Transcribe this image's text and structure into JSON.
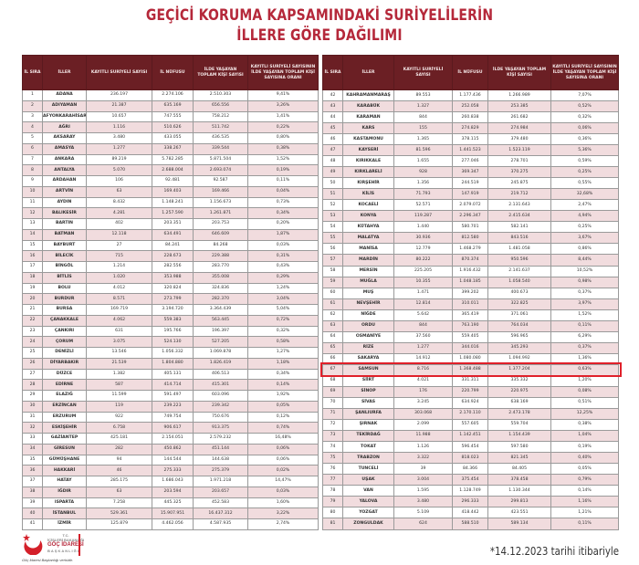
{
  "title": {
    "line1": "GEÇİCİ KORUMA KAPSAMINDAKİ SURİYELİLERİN",
    "line2": "İLLERE GÖRE DAĞILIMI"
  },
  "columns": [
    "İL SIRA",
    "İLLER",
    "KAYITLI SURİYELİ SAYISI",
    "İL NÜFUSU",
    "İLDE YAŞAYAN TOPLAM KİŞİ SAYISI",
    "KAYITLI SURİYELİ SAYISININ İLDE YAŞAYAN TOPLAM KİŞİ SAYISINA ORANI"
  ],
  "left_rows": [
    [
      "1",
      "ADANA",
      "236.197",
      "2.274.106",
      "2.510.303",
      "9,41%"
    ],
    [
      "2",
      "ADIYAMAN",
      "21.387",
      "635.169",
      "656.556",
      "3,26%"
    ],
    [
      "3",
      "AFYONKARAHİSAR",
      "10.657",
      "747.555",
      "758.212",
      "1,41%"
    ],
    [
      "4",
      "AĞRI",
      "1.116",
      "510.626",
      "511.742",
      "0,22%"
    ],
    [
      "5",
      "AKSARAY",
      "3.480",
      "433.055",
      "436.535",
      "0,80%"
    ],
    [
      "6",
      "AMASYA",
      "1.277",
      "338.267",
      "339.544",
      "0,38%"
    ],
    [
      "7",
      "ANKARA",
      "89.219",
      "5.782.285",
      "5.871.504",
      "1,52%"
    ],
    [
      "8",
      "ANTALYA",
      "5.070",
      "2.688.004",
      "2.693.074",
      "0,19%"
    ],
    [
      "9",
      "ARDAHAN",
      "106",
      "92.481",
      "92.587",
      "0,11%"
    ],
    [
      "10",
      "ARTVİN",
      "63",
      "169.403",
      "169.466",
      "0,04%"
    ],
    [
      "11",
      "AYDIN",
      "8.432",
      "1.148.241",
      "1.156.673",
      "0,73%"
    ],
    [
      "12",
      "BALIKESİR",
      "4.281",
      "1.257.590",
      "1.261.871",
      "0,34%"
    ],
    [
      "13",
      "BARTIN",
      "402",
      "203.351",
      "203.753",
      "0,20%"
    ],
    [
      "14",
      "BATMAN",
      "12.118",
      "634.491",
      "646.609",
      "1,87%"
    ],
    [
      "15",
      "BAYBURT",
      "27",
      "84.241",
      "84.268",
      "0,03%"
    ],
    [
      "16",
      "BİLECİK",
      "715",
      "228.673",
      "229.388",
      "0,31%"
    ],
    [
      "17",
      "BİNGÖL",
      "1.214",
      "282.556",
      "283.770",
      "0,43%"
    ],
    [
      "18",
      "BİTLİS",
      "1.020",
      "353.988",
      "355.008",
      "0,29%"
    ],
    [
      "19",
      "BOLU",
      "4.012",
      "320.824",
      "324.836",
      "1,24%"
    ],
    [
      "20",
      "BURDUR",
      "8.571",
      "273.799",
      "282.370",
      "3,04%"
    ],
    [
      "21",
      "BURSA",
      "169.719",
      "3.194.720",
      "3.364.439",
      "5,04%"
    ],
    [
      "22",
      "ÇANAKKALE",
      "4.062",
      "559.383",
      "563.445",
      "0,72%"
    ],
    [
      "23",
      "ÇANKIRI",
      "631",
      "195.766",
      "196.397",
      "0,32%"
    ],
    [
      "24",
      "ÇORUM",
      "3.075",
      "524.130",
      "527.205",
      "0,58%"
    ],
    [
      "25",
      "DENİZLİ",
      "13.546",
      "1.056.332",
      "1.069.878",
      "1,27%"
    ],
    [
      "26",
      "DİYARBAKIR",
      "21.539",
      "1.804.880",
      "1.826.419",
      "1,18%"
    ],
    [
      "27",
      "DÜZCE",
      "1.382",
      "405.131",
      "406.513",
      "0,34%"
    ],
    [
      "28",
      "EDİRNE",
      "587",
      "414.714",
      "415.301",
      "0,14%"
    ],
    [
      "29",
      "ELAZIĞ",
      "11.599",
      "591.497",
      "603.096",
      "1,92%"
    ],
    [
      "30",
      "ERZİNCAN",
      "119",
      "239.223",
      "239.342",
      "0,05%"
    ],
    [
      "31",
      "ERZURUM",
      "922",
      "749.754",
      "750.676",
      "0,12%"
    ],
    [
      "32",
      "ESKİŞEHİR",
      "6.758",
      "906.617",
      "913.375",
      "0,74%"
    ],
    [
      "33",
      "GAZİANTEP",
      "425.181",
      "2.154.051",
      "2.579.232",
      "16,48%"
    ],
    [
      "34",
      "GİRESUN",
      "282",
      "450.862",
      "451.144",
      "0,06%"
    ],
    [
      "35",
      "GÜMÜŞHANE",
      "94",
      "144.544",
      "144.638",
      "0,06%"
    ],
    [
      "36",
      "HAKKARİ",
      "46",
      "275.333",
      "275.379",
      "0,02%"
    ],
    [
      "37",
      "HATAY",
      "285.175",
      "1.686.043",
      "1.971.218",
      "14,47%"
    ],
    [
      "38",
      "IĞDIR",
      "63",
      "203.594",
      "203.657",
      "0,03%"
    ],
    [
      "39",
      "ISPARTA",
      "7.258",
      "445.325",
      "452.583",
      "1,60%"
    ],
    [
      "40",
      "İSTANBUL",
      "529.361",
      "15.907.951",
      "16.437.312",
      "3,22%"
    ],
    [
      "41",
      "İZMİR",
      "125.879",
      "4.462.056",
      "4.587.935",
      "2,74%"
    ]
  ],
  "right_rows": [
    [
      "42",
      "KAHRAMANMARAŞ",
      "89.553",
      "1.177.436",
      "1.266.989",
      "7,07%"
    ],
    [
      "43",
      "KARABÜK",
      "1.327",
      "252.058",
      "253.385",
      "0,52%"
    ],
    [
      "44",
      "KARAMAN",
      "844",
      "260.838",
      "261.682",
      "0,32%"
    ],
    [
      "45",
      "KARS",
      "155",
      "274.829",
      "274.984",
      "0,06%"
    ],
    [
      "46",
      "KASTAMONU",
      "1.365",
      "378.115",
      "379.480",
      "0,36%"
    ],
    [
      "47",
      "KAYSERİ",
      "81.596",
      "1.441.523",
      "1.523.119",
      "5,36%"
    ],
    [
      "48",
      "KIRIKKALE",
      "1.655",
      "277.046",
      "278.701",
      "0,59%"
    ],
    [
      "49",
      "KIRKLARELİ",
      "928",
      "369.347",
      "370.275",
      "0,25%"
    ],
    [
      "50",
      "KIRŞEHİR",
      "1.356",
      "244.519",
      "245.875",
      "0,55%"
    ],
    [
      "51",
      "KİLİS",
      "71.793",
      "147.919",
      "219.712",
      "32,68%"
    ],
    [
      "52",
      "KOCAELİ",
      "52.571",
      "2.079.072",
      "2.131.643",
      "2,47%"
    ],
    [
      "53",
      "KONYA",
      "119.287",
      "2.296.347",
      "2.415.634",
      "4,94%"
    ],
    [
      "54",
      "KÜTAHYA",
      "1.440",
      "580.701",
      "582.141",
      "0,25%"
    ],
    [
      "55",
      "MALATYA",
      "30.936",
      "812.580",
      "843.516",
      "3,67%"
    ],
    [
      "56",
      "MANİSA",
      "12.779",
      "1.468.279",
      "1.481.058",
      "0,86%"
    ],
    [
      "57",
      "MARDİN",
      "80.222",
      "870.374",
      "950.596",
      "8,44%"
    ],
    [
      "58",
      "MERSİN",
      "225.205",
      "1.916.432",
      "2.141.637",
      "10,52%"
    ],
    [
      "59",
      "MUĞLA",
      "10.355",
      "1.048.185",
      "1.058.540",
      "0,98%"
    ],
    [
      "60",
      "MUŞ",
      "1.471",
      "399.202",
      "400.673",
      "0,37%"
    ],
    [
      "61",
      "NEVŞEHİR",
      "12.814",
      "310.011",
      "322.825",
      "3,97%"
    ],
    [
      "62",
      "NİĞDE",
      "5.642",
      "365.419",
      "371.061",
      "1,52%"
    ],
    [
      "63",
      "ORDU",
      "844",
      "763.190",
      "764.034",
      "0,11%"
    ],
    [
      "64",
      "OSMANİYE",
      "37.560",
      "559.405",
      "596.965",
      "6,29%"
    ],
    [
      "65",
      "RİZE",
      "1.277",
      "344.016",
      "345.293",
      "0,37%"
    ],
    [
      "66",
      "SAKARYA",
      "14.912",
      "1.080.080",
      "1.094.992",
      "1,36%"
    ],
    [
      "67",
      "SAMSUN",
      "8.716",
      "1.368.488",
      "1.377.204",
      "0,63%"
    ],
    [
      "68",
      "SİİRT",
      "4.021",
      "331.311",
      "335.332",
      "1,20%"
    ],
    [
      "69",
      "SİNOP",
      "176",
      "220.799",
      "220.975",
      "0,08%"
    ],
    [
      "70",
      "SİVAS",
      "3.245",
      "634.924",
      "638.169",
      "0,51%"
    ],
    [
      "71",
      "ŞANLIURFA",
      "303.068",
      "2.170.110",
      "2.473.178",
      "12,25%"
    ],
    [
      "72",
      "ŞIRNAK",
      "2.099",
      "557.605",
      "559.704",
      "0,38%"
    ],
    [
      "73",
      "TEKİRDAĞ",
      "11.988",
      "1.142.451",
      "1.154.439",
      "1,04%"
    ],
    [
      "74",
      "TOKAT",
      "1.126",
      "596.454",
      "597.580",
      "0,19%"
    ],
    [
      "75",
      "TRABZON",
      "3.322",
      "818.023",
      "821.345",
      "0,40%"
    ],
    [
      "76",
      "TUNCELİ",
      "39",
      "84.366",
      "84.405",
      "0,05%"
    ],
    [
      "77",
      "UŞAK",
      "3.004",
      "375.454",
      "378.458",
      "0,79%"
    ],
    [
      "78",
      "VAN",
      "1.595",
      "1.128.749",
      "1.130.344",
      "0,14%"
    ],
    [
      "79",
      "YALOVA",
      "3.480",
      "296.333",
      "299.813",
      "1,16%"
    ],
    [
      "80",
      "YOZGAT",
      "5.109",
      "418.442",
      "423.551",
      "1,21%"
    ],
    [
      "81",
      "ZONGULDAK",
      "624",
      "588.510",
      "589.134",
      "0,11%"
    ]
  ],
  "highlighted_row": "67",
  "logo": {
    "line1": "T.C.",
    "line2": "İÇİŞLERİ BAKANLIĞI",
    "line3": "GÖÇ İDARESİ",
    "line4": "BAŞKANLIĞI",
    "caption": "Göç İdaresi Başkanlığı verisidir."
  },
  "footnote": "*14.12.2023 tarihi itibariyle",
  "colors": {
    "title": "#b5283a",
    "header_bg": "#6b1f24",
    "alt_row": "#f1dcde",
    "highlight_border": "#e0202a"
  }
}
